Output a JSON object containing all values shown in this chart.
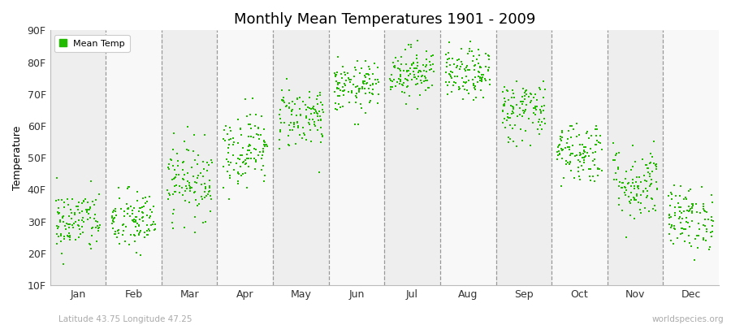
{
  "title": "Monthly Mean Temperatures 1901 - 2009",
  "ylabel": "Temperature",
  "background_color": "#ffffff",
  "plot_bg_even": "#eeeeee",
  "plot_bg_odd": "#f8f8f8",
  "dot_color": "#22bb00",
  "dot_size": 3,
  "ylim_min": 10,
  "ylim_max": 90,
  "yticks": [
    10,
    20,
    30,
    40,
    50,
    60,
    70,
    80,
    90
  ],
  "ytick_labels": [
    "10F",
    "20F",
    "30F",
    "40F",
    "50F",
    "60F",
    "70F",
    "80F",
    "90F"
  ],
  "months": [
    "Jan",
    "Feb",
    "Mar",
    "Apr",
    "May",
    "Jun",
    "Jul",
    "Aug",
    "Sep",
    "Oct",
    "Nov",
    "Dec"
  ],
  "month_means_F": [
    30,
    30,
    43,
    53,
    63,
    72,
    77,
    76,
    65,
    52,
    42,
    31
  ],
  "month_stds_F": [
    5,
    5,
    6,
    6,
    5,
    4,
    4,
    4,
    5,
    5,
    6,
    5
  ],
  "n_years": 109,
  "subtitle_left": "Latitude 43.75 Longitude 47.25",
  "subtitle_right": "worldspecies.org",
  "legend_label": "Mean Temp"
}
